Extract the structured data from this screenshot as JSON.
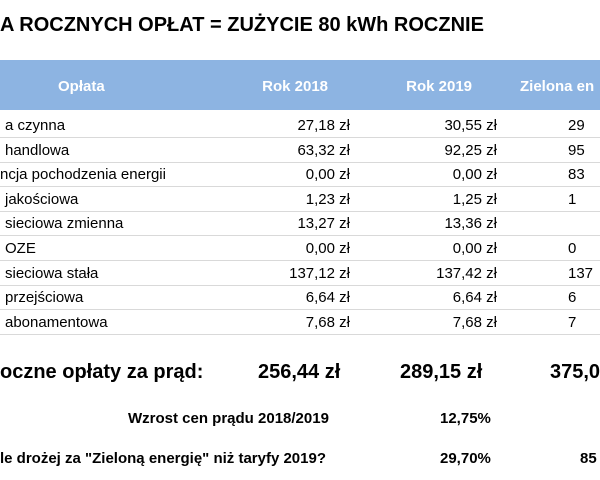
{
  "title": "A ROCZNYCH OPŁAT = ZUŻYCIE 80 kWh ROCZNIE",
  "table": {
    "header": [
      "Opłata",
      "Rok 2018",
      "Rok 2019",
      "Zielona en"
    ],
    "rows": [
      [
        "a czynna",
        "27,18 zł",
        "30,55 zł",
        "29"
      ],
      [
        "handlowa",
        "63,32 zł",
        "92,25 zł",
        "95"
      ],
      [
        "ncja pochodzenia energii",
        "0,00 zł",
        "0,00 zł",
        "83"
      ],
      [
        "jakościowa",
        "1,23 zł",
        "1,25 zł",
        "1"
      ],
      [
        "sieciowa zmienna",
        "13,27 zł",
        "13,36 zł",
        null
      ],
      [
        "OZE",
        "0,00 zł",
        "0,00 zł",
        "0"
      ],
      [
        "sieciowa stała",
        "137,12 zł",
        "137,42 zł",
        "137"
      ],
      [
        "przejściowa",
        "6,64 zł",
        "6,64 zł",
        "6"
      ],
      [
        "abonamentowa",
        "7,68 zł",
        "7,68 zł",
        "7"
      ]
    ]
  },
  "total": {
    "label": "oczne opłaty za prąd:",
    "values": [
      "256,44 zł",
      "289,15 zł",
      "375,0"
    ]
  },
  "growth": {
    "label": "Wzrost cen prądu 2018/2019",
    "value": "12,75%"
  },
  "green": {
    "label": "le drożej za \"Zieloną energię\" niż taryfy 2019?",
    "values": [
      "29,70%",
      "85"
    ]
  }
}
